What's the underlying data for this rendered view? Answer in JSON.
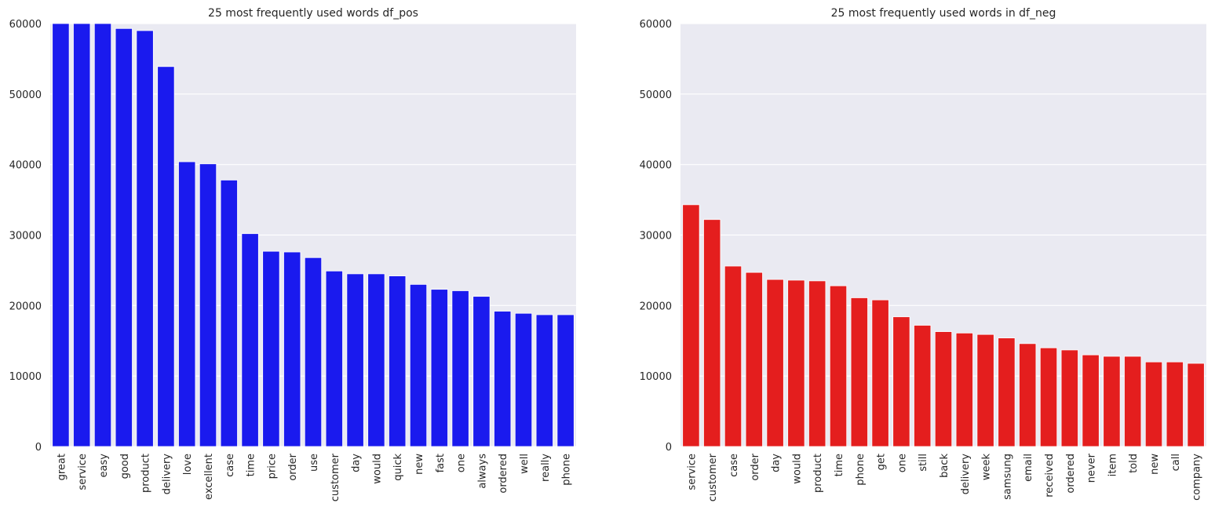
{
  "chart_data": [
    {
      "type": "bar",
      "title": "25 most frequently used words df_pos",
      "xlabel": "",
      "ylabel": "",
      "ylim": [
        0,
        60000
      ],
      "yticks": [
        0,
        10000,
        20000,
        30000,
        40000,
        50000,
        60000
      ],
      "grid": true,
      "color": "#1a1aee",
      "categories": [
        "great",
        "service",
        "easy",
        "good",
        "product",
        "delivery",
        "love",
        "excellent",
        "case",
        "time",
        "price",
        "order",
        "use",
        "customer",
        "day",
        "would",
        "quick",
        "new",
        "fast",
        "one",
        "always",
        "ordered",
        "well",
        "really",
        "phone"
      ],
      "values": [
        60000,
        60000,
        60000,
        59300,
        59000,
        53900,
        40400,
        40100,
        37800,
        30200,
        27700,
        27600,
        26800,
        24900,
        24500,
        24500,
        24200,
        23000,
        22300,
        22100,
        21300,
        19200,
        18900,
        18700,
        18700
      ]
    },
    {
      "type": "bar",
      "title": "25 most frequently used words in df_neg",
      "xlabel": "",
      "ylabel": "",
      "ylim": [
        0,
        60000
      ],
      "yticks": [
        0,
        10000,
        20000,
        30000,
        40000,
        50000,
        60000
      ],
      "grid": true,
      "color": "#e41e1e",
      "categories": [
        "service",
        "customer",
        "case",
        "order",
        "day",
        "would",
        "product",
        "time",
        "phone",
        "get",
        "one",
        "still",
        "back",
        "delivery",
        "week",
        "samsung",
        "email",
        "received",
        "ordered",
        "never",
        "item",
        "told",
        "new",
        "call",
        "company"
      ],
      "values": [
        34300,
        32200,
        25600,
        24700,
        23700,
        23600,
        23500,
        22800,
        21100,
        20800,
        18400,
        17200,
        16300,
        16100,
        15900,
        15400,
        14600,
        14000,
        13700,
        13000,
        12800,
        12800,
        12000,
        12000,
        11800
      ]
    }
  ]
}
